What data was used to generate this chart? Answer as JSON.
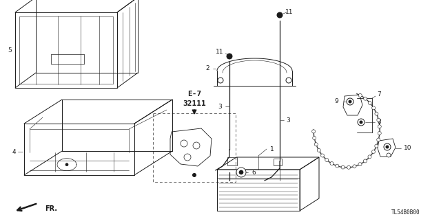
{
  "bg_color": "#ffffff",
  "diagram_code": "TL54B0B00",
  "lw": 0.7,
  "fs": 6.5,
  "color": "#1a1a1a"
}
